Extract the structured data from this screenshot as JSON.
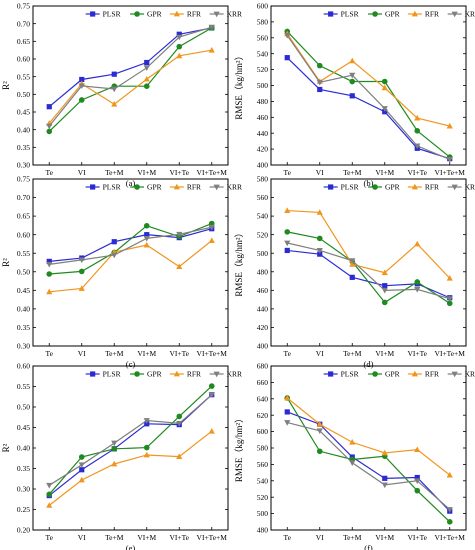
{
  "colors": {
    "PLSR": "#2b2bd6",
    "GPR": "#1f8a1f",
    "RFR": "#f0961e",
    "KRR": "#7f7f7f",
    "axis": "#000000"
  },
  "markers": {
    "PLSR": "square",
    "GPR": "circle",
    "RFR": "triangle-up",
    "KRR": "triangle-down"
  },
  "legend_items": [
    "PLSR",
    "GPR",
    "RFR",
    "KRR"
  ],
  "chart_data": [
    {
      "id": "a",
      "type": "line",
      "caption": "(a)",
      "categories": [
        "Te",
        "VI",
        "Te+M",
        "VI+M",
        "VI+Te",
        "VI+Te+M"
      ],
      "ylabel": "R²",
      "ylim": [
        0.3,
        0.75
      ],
      "yticks": [
        "0.30",
        "0.35",
        "0.40",
        "0.45",
        "0.50",
        "0.55",
        "0.60",
        "0.65",
        "0.70",
        "0.75"
      ],
      "legend_position": "top-right",
      "series": [
        {
          "name": "PLSR",
          "values": [
            0.465,
            0.542,
            0.557,
            0.59,
            0.67,
            0.688
          ]
        },
        {
          "name": "GPR",
          "values": [
            0.395,
            0.484,
            0.523,
            0.523,
            0.635,
            0.688
          ]
        },
        {
          "name": "RFR",
          "values": [
            0.418,
            0.53,
            0.472,
            0.543,
            0.609,
            0.625
          ]
        },
        {
          "name": "KRR",
          "values": [
            0.41,
            0.524,
            0.515,
            0.575,
            0.662,
            0.69
          ]
        }
      ]
    },
    {
      "id": "b",
      "type": "line",
      "caption": "(b)",
      "categories": [
        "Te",
        "VI",
        "Te+M",
        "VI+M",
        "VI+Te",
        "VI+Te+M"
      ],
      "ylabel": "RMSE（kg/hm²）",
      "ylim": [
        400,
        600
      ],
      "yticks": [
        "400",
        "420",
        "440",
        "460",
        "480",
        "500",
        "520",
        "540",
        "560",
        "580",
        "600"
      ],
      "legend_position": "top-right",
      "series": [
        {
          "name": "PLSR",
          "values": [
            535,
            495,
            487,
            467,
            421,
            408
          ]
        },
        {
          "name": "GPR",
          "values": [
            568,
            525,
            505,
            505,
            443,
            410
          ]
        },
        {
          "name": "RFR",
          "values": [
            565,
            505,
            531,
            497,
            459,
            449
          ]
        },
        {
          "name": "KRR",
          "values": [
            563,
            504,
            513,
            471,
            424,
            407
          ]
        }
      ]
    },
    {
      "id": "c",
      "type": "line",
      "caption": "(c)",
      "categories": [
        "Te",
        "VI",
        "Te+M",
        "VI+M",
        "VI+Te",
        "VI+Te+M"
      ],
      "ylabel": "R²",
      "ylim": [
        0.3,
        0.75
      ],
      "yticks": [
        "0.30",
        "0.35",
        "0.40",
        "0.45",
        "0.50",
        "0.55",
        "0.60",
        "0.65",
        "0.70",
        "0.75"
      ],
      "legend_position": "top-right",
      "series": [
        {
          "name": "PLSR",
          "values": [
            0.528,
            0.537,
            0.581,
            0.6,
            0.592,
            0.616
          ]
        },
        {
          "name": "GPR",
          "values": [
            0.494,
            0.501,
            0.552,
            0.624,
            0.595,
            0.63
          ]
        },
        {
          "name": "RFR",
          "values": [
            0.446,
            0.455,
            0.553,
            0.572,
            0.514,
            0.584
          ]
        },
        {
          "name": "KRR",
          "values": [
            0.52,
            0.532,
            0.545,
            0.59,
            0.601,
            0.62
          ]
        }
      ]
    },
    {
      "id": "d",
      "type": "line",
      "caption": "(d)",
      "categories": [
        "Te",
        "VI",
        "Te+M",
        "VI+M",
        "VI+Te",
        "VI+Te+M"
      ],
      "ylabel": "RMSE（kg/hm²）",
      "ylim": [
        400,
        580
      ],
      "yticks": [
        "400",
        "420",
        "440",
        "460",
        "480",
        "500",
        "520",
        "540",
        "560",
        "580"
      ],
      "legend_position": "top-right",
      "series": [
        {
          "name": "PLSR",
          "values": [
            503,
            499,
            474,
            465,
            467,
            452
          ]
        },
        {
          "name": "GPR",
          "values": [
            523,
            516,
            491,
            447,
            469,
            446
          ]
        },
        {
          "name": "RFR",
          "values": [
            546,
            544,
            488,
            479,
            510,
            473
          ]
        },
        {
          "name": "KRR",
          "values": [
            511,
            503,
            492,
            460,
            461,
            451
          ]
        }
      ]
    },
    {
      "id": "e",
      "type": "line",
      "caption": "(e)",
      "categories": [
        "Te",
        "VI",
        "Te+M",
        "VI+M",
        "VI+Te",
        "VI+Te+M"
      ],
      "ylabel": "R²",
      "ylim": [
        0.2,
        0.6
      ],
      "yticks": [
        "0.20",
        "0.25",
        "0.30",
        "0.35",
        "0.40",
        "0.45",
        "0.50",
        "0.55",
        "0.60"
      ],
      "legend_position": "top-right",
      "series": [
        {
          "name": "PLSR",
          "values": [
            0.284,
            0.347,
            0.398,
            0.459,
            0.457,
            0.53
          ]
        },
        {
          "name": "GPR",
          "values": [
            0.287,
            0.378,
            0.398,
            0.401,
            0.477,
            0.551
          ]
        },
        {
          "name": "RFR",
          "values": [
            0.26,
            0.322,
            0.361,
            0.383,
            0.379,
            0.441
          ]
        },
        {
          "name": "KRR",
          "values": [
            0.309,
            0.359,
            0.412,
            0.467,
            0.46,
            0.53
          ]
        }
      ]
    },
    {
      "id": "f",
      "type": "line",
      "caption": "(f)",
      "categories": [
        "Te",
        "VI",
        "Te+M",
        "VI+M",
        "VI+Te",
        "VI+Te+M"
      ],
      "ylabel": "RMSE（kg/hm²）",
      "ylim": [
        480,
        680
      ],
      "yticks": [
        "480",
        "500",
        "520",
        "540",
        "560",
        "580",
        "600",
        "620",
        "640",
        "660",
        "680"
      ],
      "legend_position": "top-right",
      "series": [
        {
          "name": "PLSR",
          "values": [
            624,
            609,
            569,
            543,
            544,
            503
          ]
        },
        {
          "name": "GPR",
          "values": [
            641,
            576,
            566,
            570,
            528,
            490
          ]
        },
        {
          "name": "RFR",
          "values": [
            641,
            609,
            587,
            574,
            578,
            547
          ]
        },
        {
          "name": "KRR",
          "values": [
            611,
            601,
            562,
            535,
            540,
            505
          ]
        }
      ]
    }
  ]
}
